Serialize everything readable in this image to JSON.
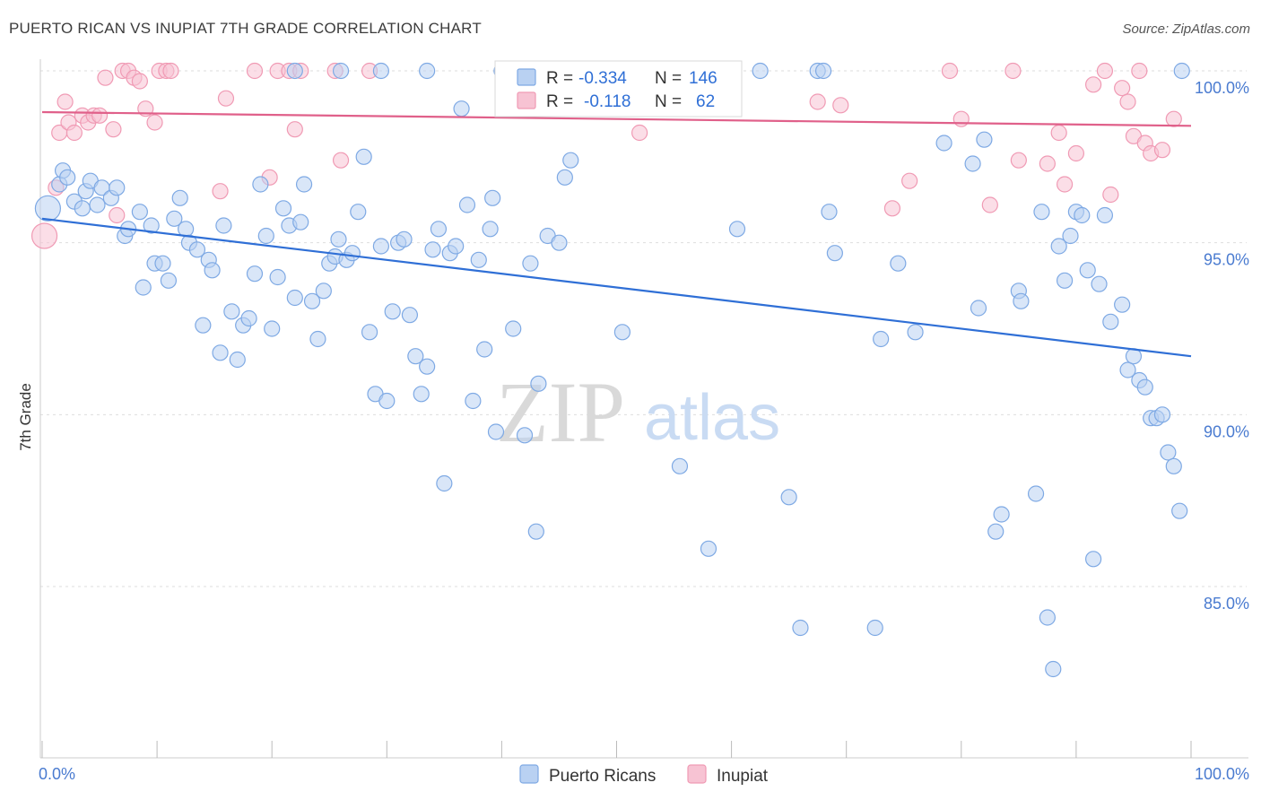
{
  "title": "PUERTO RICAN VS INUPIAT 7TH GRADE CORRELATION CHART",
  "source": "Source: ZipAtlas.com",
  "watermark": {
    "zip": "ZIP",
    "atlas": "atlas"
  },
  "colors": {
    "blue": "#7ea9e4",
    "blue_fill": "#b9d1f2",
    "blue_line": "#2f6fd6",
    "pink": "#f09ab4",
    "pink_fill": "#f7c3d3",
    "pink_line": "#e0608a",
    "tick": "#4a7bd0"
  },
  "legend_box": {
    "rows": [
      {
        "r_label": "R =",
        "r_value": "-0.334",
        "n_label": "N =",
        "n_value": "146"
      },
      {
        "r_label": "R =",
        "r_value": "-0.118",
        "n_label": "N =",
        "n_value": "62"
      }
    ]
  },
  "chart_data": {
    "type": "scatter",
    "xlabel": "",
    "ylabel": "7th Grade",
    "xlim": [
      0,
      100
    ],
    "ylim": [
      80.2,
      100.8
    ],
    "x_tick_labels": [
      "0.0%",
      "100.0%"
    ],
    "y_ticks": [
      85,
      90,
      95,
      100
    ],
    "y_tick_labels": [
      "85.0%",
      "90.0%",
      "95.0%",
      "100.0%"
    ],
    "grid": true,
    "legend_position": "bottom-center",
    "series": [
      {
        "name": "Puerto Ricans",
        "trend": {
          "x": [
            0,
            100
          ],
          "y": [
            95.7,
            91.7
          ]
        },
        "points": [
          [
            0.5,
            96.0
          ],
          [
            1.5,
            96.7
          ],
          [
            1.8,
            97.1
          ],
          [
            2.2,
            96.9
          ],
          [
            2.8,
            96.2
          ],
          [
            3.5,
            96.0
          ],
          [
            3.8,
            96.5
          ],
          [
            4.2,
            96.8
          ],
          [
            4.8,
            96.1
          ],
          [
            5.2,
            96.6
          ],
          [
            6.0,
            96.3
          ],
          [
            6.5,
            96.6
          ],
          [
            7.2,
            95.2
          ],
          [
            7.5,
            95.4
          ],
          [
            8.8,
            93.7
          ],
          [
            8.5,
            95.9
          ],
          [
            9.5,
            95.5
          ],
          [
            9.8,
            94.4
          ],
          [
            10.5,
            94.4
          ],
          [
            11.0,
            93.9
          ],
          [
            11.5,
            95.7
          ],
          [
            12.0,
            96.3
          ],
          [
            12.5,
            95.4
          ],
          [
            12.8,
            95.0
          ],
          [
            13.5,
            94.8
          ],
          [
            14.0,
            92.6
          ],
          [
            14.5,
            94.5
          ],
          [
            14.8,
            94.2
          ],
          [
            15.5,
            91.8
          ],
          [
            15.8,
            95.5
          ],
          [
            16.5,
            93.0
          ],
          [
            17.0,
            91.6
          ],
          [
            17.5,
            92.6
          ],
          [
            18.0,
            92.8
          ],
          [
            18.5,
            94.1
          ],
          [
            19.0,
            96.7
          ],
          [
            19.5,
            95.2
          ],
          [
            20.0,
            92.5
          ],
          [
            20.5,
            94.0
          ],
          [
            21.0,
            96.0
          ],
          [
            21.5,
            95.5
          ],
          [
            22.0,
            93.4
          ],
          [
            22.5,
            95.6
          ],
          [
            22.8,
            96.7
          ],
          [
            23.5,
            93.3
          ],
          [
            24.0,
            92.2
          ],
          [
            24.5,
            93.6
          ],
          [
            25.0,
            94.4
          ],
          [
            25.5,
            94.6
          ],
          [
            25.8,
            95.1
          ],
          [
            26.5,
            94.5
          ],
          [
            27.0,
            94.7
          ],
          [
            27.5,
            95.9
          ],
          [
            28.0,
            97.5
          ],
          [
            28.5,
            92.4
          ],
          [
            29.0,
            90.6
          ],
          [
            29.5,
            94.9
          ],
          [
            30.0,
            90.4
          ],
          [
            30.5,
            93.0
          ],
          [
            31.0,
            95.0
          ],
          [
            31.5,
            95.1
          ],
          [
            32.0,
            92.9
          ],
          [
            32.5,
            91.7
          ],
          [
            33.0,
            90.6
          ],
          [
            33.5,
            91.4
          ],
          [
            34.0,
            94.8
          ],
          [
            34.5,
            95.4
          ],
          [
            35.0,
            88.0
          ],
          [
            35.5,
            94.7
          ],
          [
            36.0,
            94.9
          ],
          [
            36.5,
            98.9
          ],
          [
            37.0,
            96.1
          ],
          [
            37.5,
            90.4
          ],
          [
            38.0,
            94.5
          ],
          [
            38.5,
            91.9
          ],
          [
            39.0,
            95.4
          ],
          [
            39.2,
            96.3
          ],
          [
            39.5,
            89.5
          ],
          [
            40.0,
            100.0
          ],
          [
            41.0,
            92.5
          ],
          [
            42.0,
            89.4
          ],
          [
            42.5,
            94.4
          ],
          [
            43.0,
            86.6
          ],
          [
            43.2,
            90.9
          ],
          [
            44.0,
            95.2
          ],
          [
            45.0,
            95.0
          ],
          [
            45.5,
            96.9
          ],
          [
            46.0,
            97.4
          ],
          [
            48.5,
            100.0
          ],
          [
            50.5,
            92.4
          ],
          [
            51.5,
            100.0
          ],
          [
            53.0,
            100.0
          ],
          [
            55.5,
            88.5
          ],
          [
            56.5,
            100.0
          ],
          [
            58.0,
            86.1
          ],
          [
            60.5,
            95.4
          ],
          [
            62.5,
            100.0
          ],
          [
            65.0,
            87.6
          ],
          [
            66.0,
            83.8
          ],
          [
            67.5,
            100.0
          ],
          [
            68.0,
            100.0
          ],
          [
            68.5,
            95.9
          ],
          [
            69.0,
            94.7
          ],
          [
            72.5,
            83.8
          ],
          [
            73.0,
            92.2
          ],
          [
            74.5,
            94.4
          ],
          [
            76.0,
            92.4
          ],
          [
            78.5,
            97.9
          ],
          [
            81.0,
            97.3
          ],
          [
            81.5,
            93.1
          ],
          [
            82.0,
            98.0
          ],
          [
            83.0,
            86.6
          ],
          [
            83.5,
            87.1
          ],
          [
            85.0,
            93.6
          ],
          [
            85.2,
            93.3
          ],
          [
            86.5,
            87.7
          ],
          [
            87.0,
            95.9
          ],
          [
            87.5,
            84.1
          ],
          [
            88.0,
            82.6
          ],
          [
            88.5,
            94.9
          ],
          [
            89.0,
            93.9
          ],
          [
            89.5,
            95.2
          ],
          [
            90.0,
            95.9
          ],
          [
            90.5,
            95.8
          ],
          [
            91.0,
            94.2
          ],
          [
            91.5,
            85.8
          ],
          [
            92.0,
            93.8
          ],
          [
            92.5,
            95.8
          ],
          [
            93.0,
            92.7
          ],
          [
            94.0,
            93.2
          ],
          [
            94.5,
            91.3
          ],
          [
            95.0,
            91.7
          ],
          [
            95.5,
            91.0
          ],
          [
            96.0,
            90.8
          ],
          [
            96.5,
            89.9
          ],
          [
            97.0,
            89.9
          ],
          [
            97.5,
            90.0
          ],
          [
            98.0,
            88.9
          ],
          [
            98.5,
            88.5
          ],
          [
            99.0,
            87.2
          ],
          [
            99.2,
            100.0
          ],
          [
            22.0,
            100.0
          ],
          [
            26.0,
            100.0
          ],
          [
            29.5,
            100.0
          ],
          [
            33.5,
            100.0
          ]
        ]
      },
      {
        "name": "Inupiat",
        "trend": {
          "x": [
            0,
            100
          ],
          "y": [
            98.8,
            98.4
          ]
        },
        "points": [
          [
            0.2,
            95.2
          ],
          [
            1.2,
            96.6
          ],
          [
            1.5,
            98.2
          ],
          [
            2.0,
            99.1
          ],
          [
            2.3,
            98.5
          ],
          [
            2.8,
            98.2
          ],
          [
            3.5,
            98.7
          ],
          [
            4.0,
            98.5
          ],
          [
            4.5,
            98.7
          ],
          [
            5.0,
            98.7
          ],
          [
            5.5,
            99.8
          ],
          [
            6.2,
            98.3
          ],
          [
            6.5,
            95.8
          ],
          [
            7.0,
            100.0
          ],
          [
            7.5,
            100.0
          ],
          [
            8.0,
            99.8
          ],
          [
            8.5,
            99.7
          ],
          [
            9.0,
            98.9
          ],
          [
            9.8,
            98.5
          ],
          [
            10.2,
            100.0
          ],
          [
            10.8,
            100.0
          ],
          [
            11.2,
            100.0
          ],
          [
            15.5,
            96.5
          ],
          [
            16.0,
            99.2
          ],
          [
            18.5,
            100.0
          ],
          [
            19.8,
            96.9
          ],
          [
            20.5,
            100.0
          ],
          [
            21.5,
            100.0
          ],
          [
            22.0,
            98.3
          ],
          [
            22.5,
            100.0
          ],
          [
            25.5,
            100.0
          ],
          [
            26.0,
            97.4
          ],
          [
            28.5,
            100.0
          ],
          [
            42.0,
            100.0
          ],
          [
            52.0,
            98.2
          ],
          [
            67.5,
            99.1
          ],
          [
            69.5,
            99.0
          ],
          [
            74.0,
            96.0
          ],
          [
            75.5,
            96.8
          ],
          [
            79.0,
            100.0
          ],
          [
            80.0,
            98.6
          ],
          [
            82.5,
            96.1
          ],
          [
            84.5,
            100.0
          ],
          [
            85.0,
            97.4
          ],
          [
            87.5,
            97.3
          ],
          [
            88.5,
            98.2
          ],
          [
            89.0,
            96.7
          ],
          [
            90.0,
            97.6
          ],
          [
            91.5,
            99.6
          ],
          [
            92.5,
            100.0
          ],
          [
            93.0,
            96.4
          ],
          [
            94.0,
            99.5
          ],
          [
            94.5,
            99.1
          ],
          [
            95.0,
            98.1
          ],
          [
            95.5,
            100.0
          ],
          [
            96.0,
            97.9
          ],
          [
            96.5,
            97.6
          ],
          [
            97.5,
            97.7
          ],
          [
            98.5,
            98.6
          ]
        ]
      }
    ]
  }
}
